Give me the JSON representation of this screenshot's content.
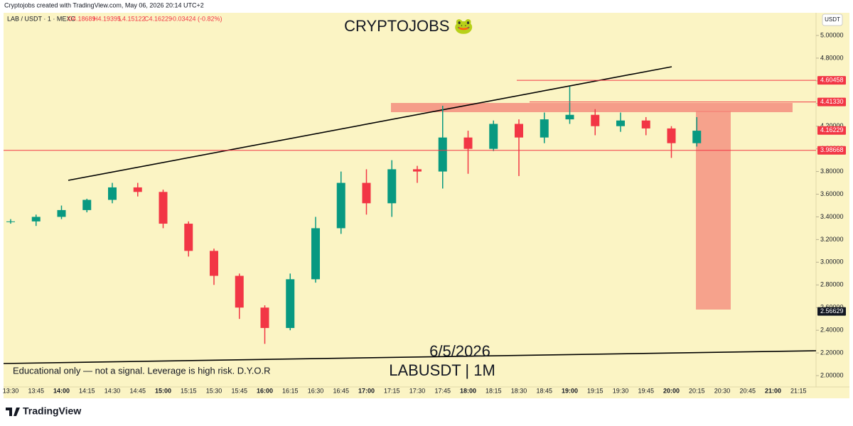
{
  "header": {
    "credit": "Cryptojobs created with TradingView.com, May 06, 2026 20:14 UTC+2",
    "symbol": "LAB / USDT · 1 · MEXC",
    "open": "O4.18689",
    "high": "H4.19395",
    "low": "L4.15122",
    "close": "C4.16229",
    "change": "-0.03424 (-0.82%)"
  },
  "footer": {
    "brand": "TradingView"
  },
  "chart_data": {
    "type": "candlestick",
    "title": "CRYPTOJOBS 🐸",
    "annotations": [
      "6/5/2026",
      "LABUSDT | 1M",
      "Educational only — not a signal. Leverage is high risk. D.Y.O.R"
    ],
    "currency": "USDT",
    "categories": [
      "13:30",
      "13:45",
      "14:00",
      "14:15",
      "14:30",
      "14:45",
      "15:00",
      "15:15",
      "15:30",
      "15:45",
      "16:00",
      "16:15",
      "16:30",
      "16:45",
      "17:00",
      "17:15",
      "17:30",
      "17:45",
      "18:00",
      "18:15",
      "18:30",
      "18:45",
      "19:00",
      "19:15",
      "19:30",
      "19:45",
      "20:00",
      "20:15",
      "20:30",
      "20:45",
      "21:00",
      "21:15"
    ],
    "open": [
      3.36,
      3.36,
      3.4,
      3.46,
      3.55,
      3.66,
      3.62,
      3.34,
      3.1,
      2.88,
      2.6,
      2.42,
      2.85,
      3.3,
      3.7,
      3.52,
      3.82,
      3.8,
      4.1,
      4.0,
      4.22,
      4.1,
      4.26,
      4.3,
      4.2,
      4.25,
      4.18,
      4.05,
      null,
      null,
      null,
      null
    ],
    "high": [
      3.38,
      3.42,
      3.5,
      3.56,
      3.7,
      3.7,
      3.64,
      3.36,
      3.12,
      2.9,
      2.62,
      2.9,
      3.4,
      3.8,
      3.82,
      3.9,
      3.85,
      4.38,
      4.16,
      4.25,
      4.26,
      4.32,
      4.55,
      4.35,
      4.32,
      4.28,
      4.2,
      4.28,
      null,
      null,
      null,
      null
    ],
    "low": [
      3.34,
      3.32,
      3.38,
      3.44,
      3.52,
      3.58,
      3.3,
      3.05,
      2.8,
      2.5,
      2.28,
      2.4,
      2.82,
      3.25,
      3.42,
      3.4,
      3.7,
      3.65,
      3.78,
      3.98,
      3.76,
      4.05,
      4.22,
      4.12,
      4.15,
      4.12,
      3.92,
      4.02,
      null,
      null,
      null,
      null
    ],
    "close": [
      3.36,
      3.4,
      3.46,
      3.55,
      3.66,
      3.62,
      3.34,
      3.1,
      2.88,
      2.6,
      2.42,
      2.85,
      3.3,
      3.7,
      3.52,
      3.82,
      3.8,
      4.1,
      4.0,
      4.22,
      4.1,
      4.26,
      4.3,
      4.2,
      4.25,
      4.18,
      4.05,
      4.16,
      null,
      null,
      null,
      null
    ],
    "up_color": "#089981",
    "down_color": "#f23645",
    "ylim": [
      1.9,
      5.2
    ],
    "yticks": [
      {
        "value": 2,
        "label": "2.00000"
      },
      {
        "value": 2.2,
        "label": "2.20000"
      },
      {
        "value": 2.4,
        "label": "2.40000"
      },
      {
        "value": 2.6,
        "label": "2.60000"
      },
      {
        "value": 2.8,
        "label": "2.80000"
      },
      {
        "value": 3,
        "label": "3.00000"
      },
      {
        "value": 3.2,
        "label": "3.20000"
      },
      {
        "value": 3.4,
        "label": "3.40000"
      },
      {
        "value": 3.6,
        "label": "3.60000"
      },
      {
        "value": 3.8,
        "label": "3.80000"
      },
      {
        "value": 4,
        "label": "4.00000"
      },
      {
        "value": 4.2,
        "label": "4.20000"
      },
      {
        "value": 4.4,
        "label": "4.40000"
      },
      {
        "value": 4.6,
        "label": "4.60000"
      },
      {
        "value": 4.8,
        "label": "4.80000"
      },
      {
        "value": 5,
        "label": "5.00000"
      }
    ],
    "levels": [
      {
        "value": 4.60458,
        "label": "4.60458",
        "color": "#f23645"
      },
      {
        "value": 4.4133,
        "label": "4.41330",
        "color": "#f23645"
      },
      {
        "value": 4.16229,
        "label": "4.16229",
        "color": "#f23645"
      },
      {
        "value": 3.98668,
        "label": "3.98668",
        "color": "#f23645"
      },
      {
        "value": 2.56629,
        "label": "2.56629",
        "color": "#131722"
      }
    ]
  }
}
